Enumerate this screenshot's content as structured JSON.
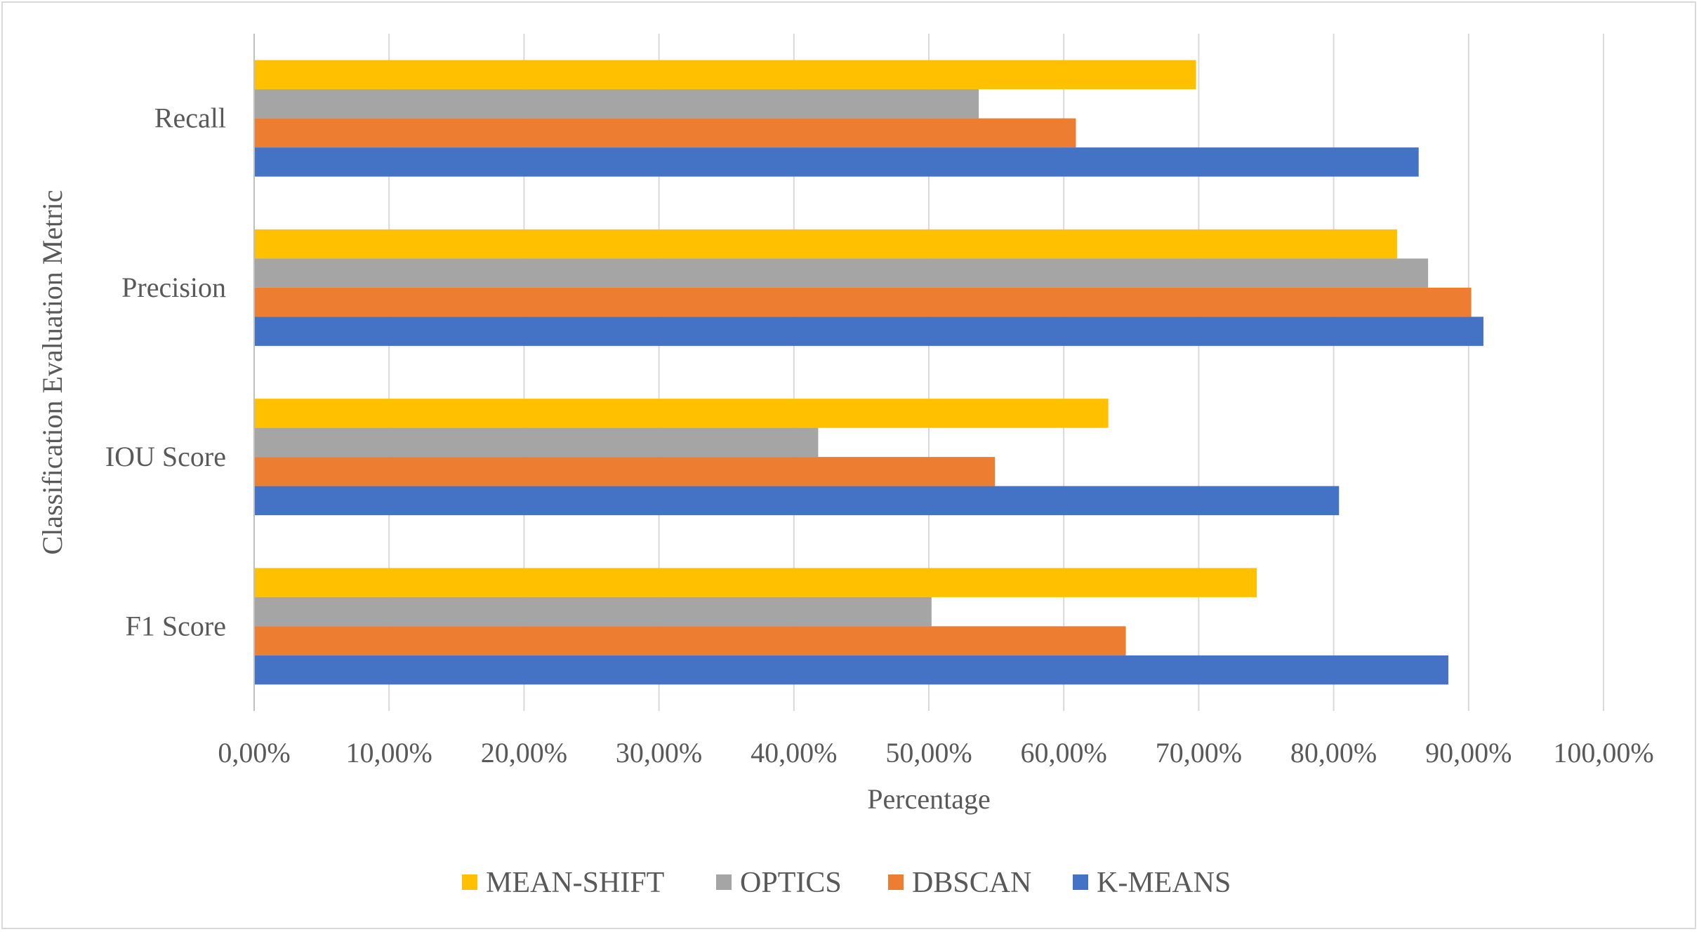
{
  "chart_data": {
    "type": "bar",
    "orientation": "horizontal",
    "categories": [
      "Recall",
      "Precision",
      "IOU Score",
      "F1 Score"
    ],
    "series": [
      {
        "name": "MEAN-SHIFT",
        "color": "#FFC000",
        "values": [
          69.8,
          84.7,
          63.3,
          74.3
        ]
      },
      {
        "name": "OPTICS",
        "color": "#A5A5A5",
        "values": [
          53.7,
          87.0,
          41.8,
          50.2
        ]
      },
      {
        "name": "DBSCAN",
        "color": "#ED7D31",
        "values": [
          60.9,
          90.2,
          54.9,
          64.6
        ]
      },
      {
        "name": "K-MEANS",
        "color": "#4472C4",
        "values": [
          86.3,
          91.1,
          80.4,
          88.5
        ]
      }
    ],
    "xlabel": "Percentage",
    "ylabel": "Classification Evaluation Metric",
    "xlim": [
      0,
      100
    ],
    "xticks": [
      "0,00%",
      "10,00%",
      "20,00%",
      "30,00%",
      "40,00%",
      "50,00%",
      "60,00%",
      "70,00%",
      "80,00%",
      "90,00%",
      "100,00%"
    ],
    "grid": true,
    "legend_position": "bottom"
  }
}
